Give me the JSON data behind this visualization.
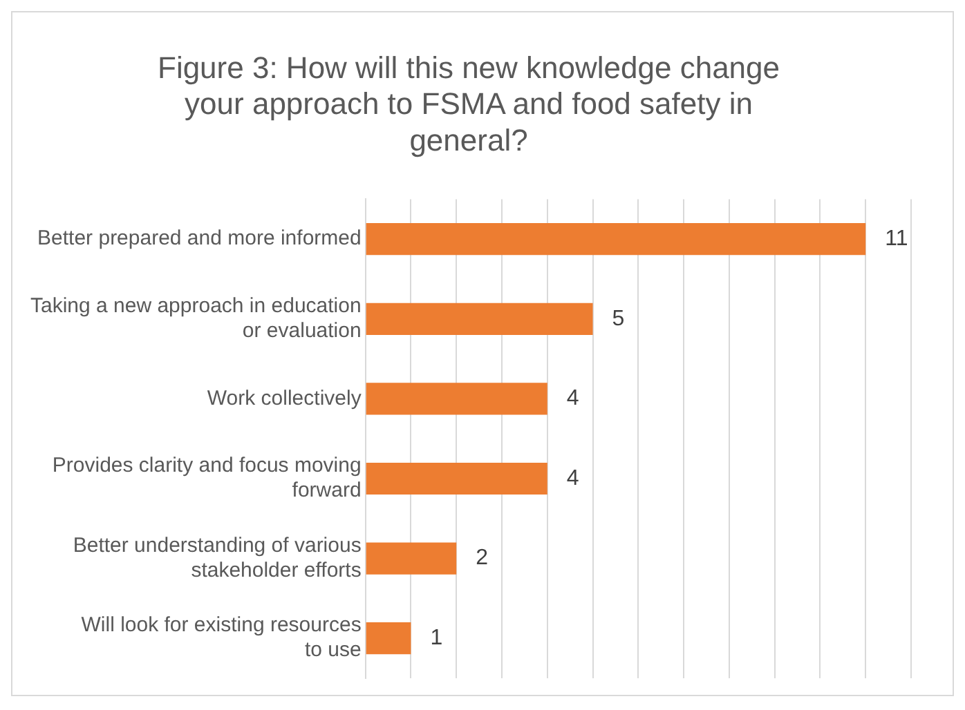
{
  "chart_data": {
    "type": "bar",
    "orientation": "horizontal",
    "title": "Figure 3: How will this new knowledge change your approach to FSMA and food safety in general?",
    "categories": [
      "Better prepared and more informed",
      "Taking a new approach in education or evaluation",
      "Work collectively",
      "Provides clarity and focus moving forward",
      "Better understanding of various stakeholder efforts",
      "Will look for existing resources to use"
    ],
    "values": [
      11,
      5,
      4,
      4,
      2,
      1
    ],
    "color": "#ed7d31",
    "data_labels": true,
    "grid": "x",
    "tick_labels": "y",
    "xlim": [
      0,
      12
    ],
    "xticks": [
      {
        "value": 0,
        "label": null
      },
      {
        "value": 1,
        "label": null
      },
      {
        "value": 2,
        "label": null
      },
      {
        "value": 3,
        "label": null
      },
      {
        "value": 4,
        "label": null
      },
      {
        "value": 5,
        "label": null
      },
      {
        "value": 6,
        "label": null
      },
      {
        "value": 7,
        "label": null
      },
      {
        "value": 8,
        "label": null
      },
      {
        "value": 9,
        "label": null
      },
      {
        "value": 10,
        "label": null
      },
      {
        "value": 11,
        "label": null
      },
      {
        "value": 12,
        "label": null
      }
    ]
  }
}
